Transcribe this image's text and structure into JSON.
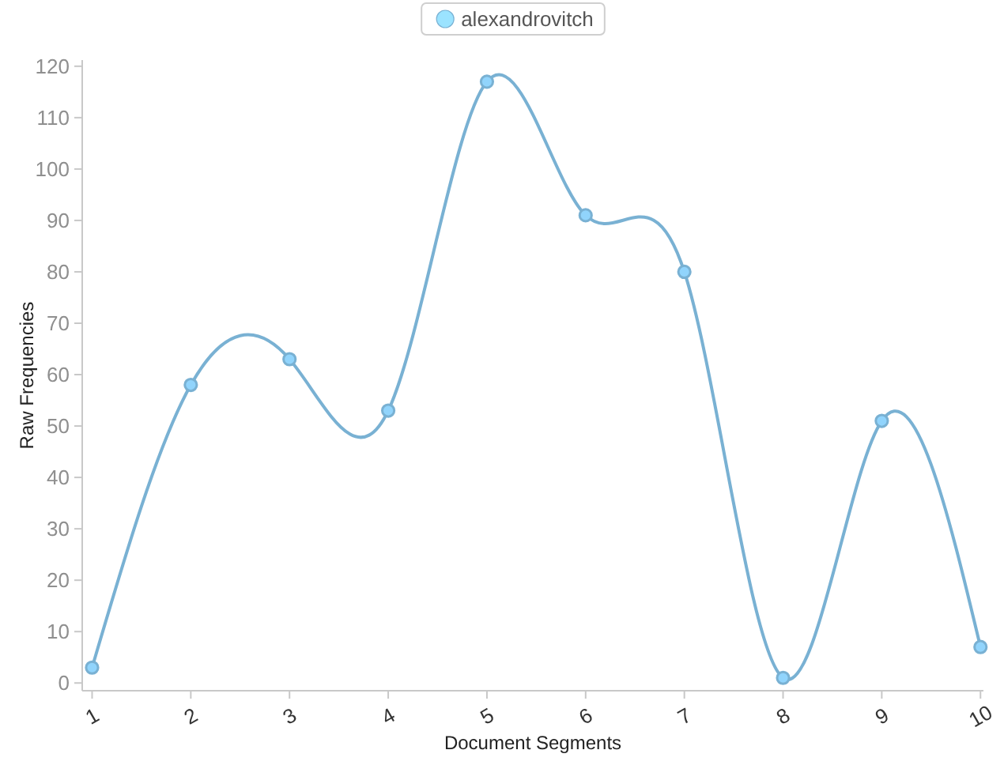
{
  "chart_data": {
    "type": "line",
    "xlabel": "Document Segments",
    "ylabel": "Raw Frequencies",
    "x": [
      1,
      2,
      3,
      4,
      5,
      6,
      7,
      8,
      9,
      10
    ],
    "series": [
      {
        "name": "alexandrovitch",
        "color": "#79b1d3",
        "values": [
          3,
          58,
          63,
          53,
          117,
          91,
          80,
          1,
          51,
          7
        ]
      }
    ],
    "xlim": [
      0.9,
      10.03
    ],
    "ylim": [
      -1.5,
      121.2
    ],
    "xticks": [
      1,
      2,
      3,
      4,
      5,
      6,
      7,
      8,
      9,
      10
    ],
    "yticks": [
      0,
      10,
      20,
      30,
      40,
      50,
      60,
      70,
      80,
      90,
      100,
      110,
      120
    ],
    "legend": "top",
    "marker": "circle",
    "line_style": "solid"
  }
}
